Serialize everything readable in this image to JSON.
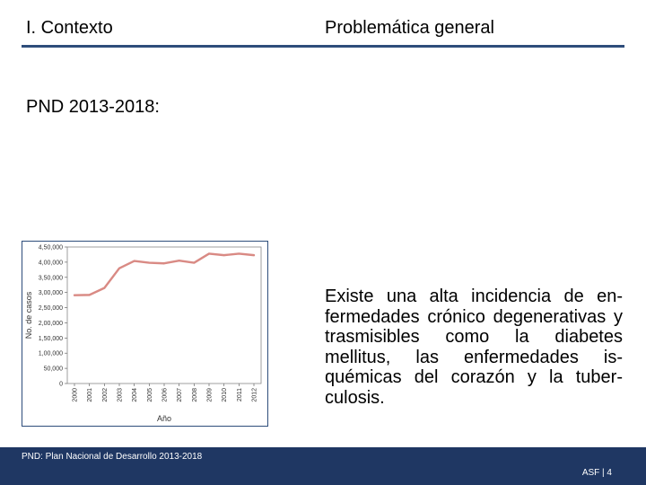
{
  "header": {
    "section": "I. Contexto",
    "topic": "Problemática general"
  },
  "subtitle": "PND 2013-2018:",
  "description": "Existe una alta incidencia de en­fermedades crónico degenerati­vas y trasmisibles como la diabe­tes mellitus, las enfermedades is­quémicas del corazón y la tuber­culosis.",
  "footer": {
    "note": "PND: Plan Nacional de Desarrollo 2013-2018",
    "page": "ASF | 4"
  },
  "colors": {
    "accent": "#2e4d7b",
    "footer_band": "#1f3763",
    "series": "#d98a84"
  },
  "chart_data": {
    "type": "line",
    "x": [
      "2000",
      "2001",
      "2002",
      "2003",
      "2004",
      "2005",
      "2006",
      "2007",
      "2008",
      "2009",
      "2010",
      "2011",
      "2012"
    ],
    "series": [
      {
        "values": [
          291000,
          292000,
          315000,
          380000,
          404000,
          398000,
          396000,
          405000,
          398000,
          428000,
          423000,
          428000,
          423000
        ]
      }
    ],
    "xlabel": "Año",
    "ylabel": "No. de casos",
    "y_ticks": [
      "0",
      "50,000",
      "1,00,000",
      "1,50,000",
      "2,00,000",
      "2,50,000",
      "3,00,000",
      "3,50,000",
      "4,00,000",
      "4,50,000"
    ],
    "ylim": [
      0,
      450000
    ],
    "grid": false
  }
}
